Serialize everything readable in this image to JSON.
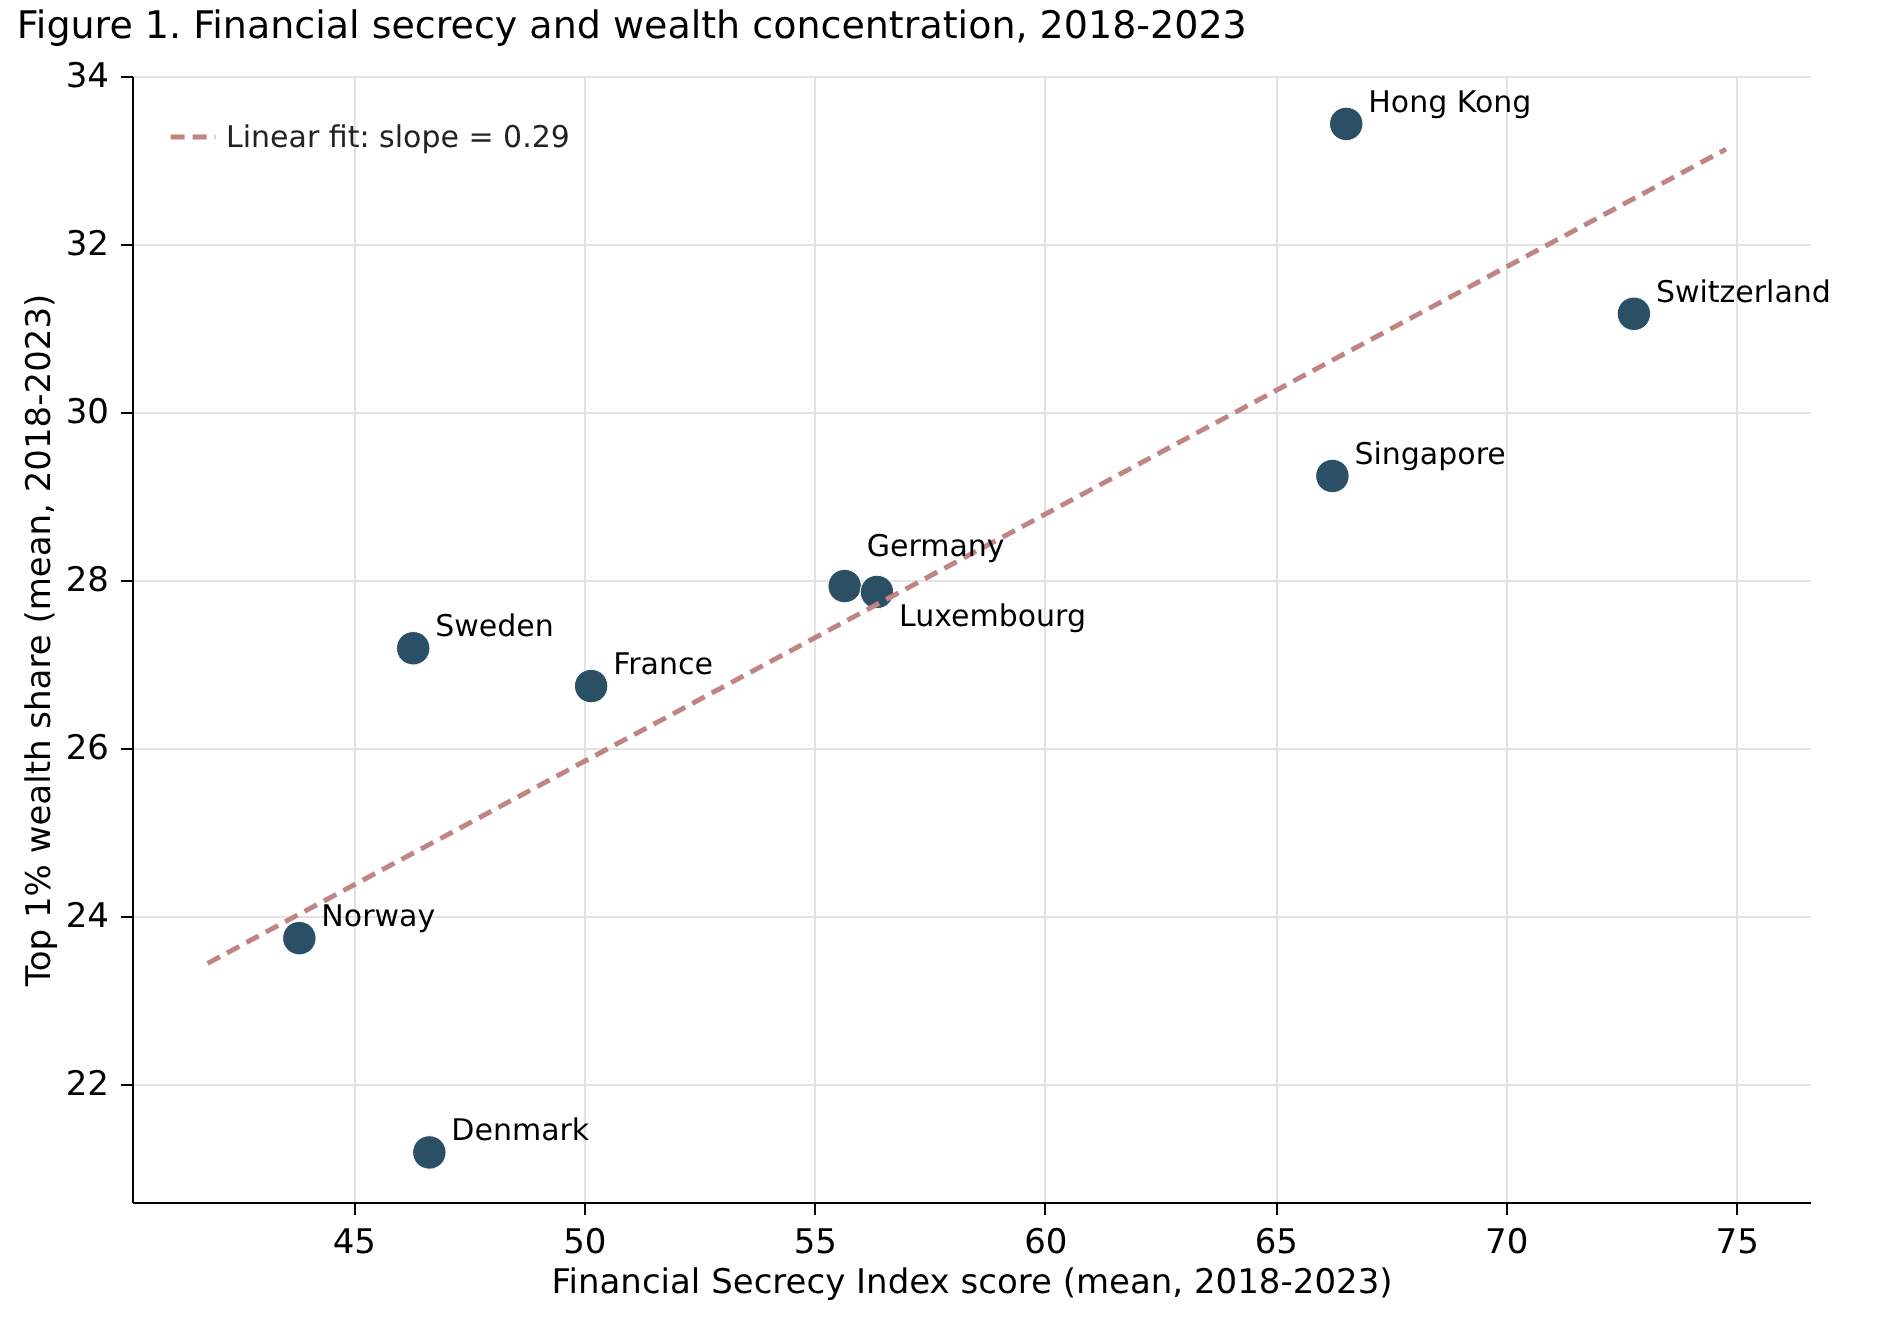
{
  "chart_data": {
    "type": "scatter",
    "title": "Figure 1. Financial secrecy and wealth concentration, 2018-2023",
    "xlabel": "Financial Secrecy Index score (mean, 2018-2023)",
    "ylabel": "Top 1% wealth share (mean, 2018-2023)",
    "xlim": [
      40.2,
      76.6
    ],
    "xticks": [
      45,
      50,
      55,
      60,
      65,
      70,
      75
    ],
    "ylim": [
      20.6,
      34.0
    ],
    "yticks": [
      22,
      24,
      26,
      28,
      30,
      32,
      34
    ],
    "grid": true,
    "legend": "top left",
    "series": [
      {
        "type": "scatter",
        "marker": "circle",
        "color": "#2b5066",
        "x": [
          66.54,
          72.78,
          66.24,
          55.66,
          56.36,
          46.3,
          50.16,
          43.83,
          46.65
        ],
        "values": [
          33.43,
          31.17,
          29.24,
          27.93,
          27.86,
          27.19,
          26.74,
          23.74,
          21.19
        ]
      },
      {
        "type": "line",
        "name": "Linear fit: slope = 0.29",
        "color": "#c08484",
        "line_style": "dashed",
        "x": [
          41.84,
          74.78
        ],
        "values": [
          23.44,
          33.13
        ]
      }
    ],
    "annotations": [
      {
        "text": "Hong Kong",
        "x": 66.54,
        "y": 33.43
      },
      {
        "text": "Switzerland",
        "x": 72.78,
        "y": 31.17
      },
      {
        "text": "Singapore",
        "x": 66.24,
        "y": 29.24
      },
      {
        "text": "Germany",
        "x": 55.66,
        "y": 27.93
      },
      {
        "text": "Luxembourg",
        "x": 56.36,
        "y": 27.86
      },
      {
        "text": "Sweden",
        "x": 46.3,
        "y": 27.19
      },
      {
        "text": "France",
        "x": 50.16,
        "y": 26.74
      },
      {
        "text": "Norway",
        "x": 43.83,
        "y": 23.74
      },
      {
        "text": "Denmark",
        "x": 46.65,
        "y": 21.19
      }
    ]
  }
}
